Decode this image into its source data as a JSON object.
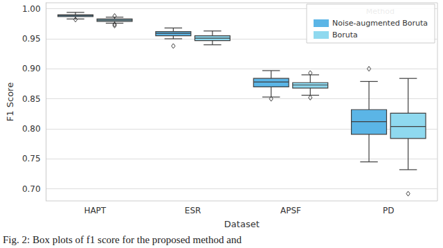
{
  "chart_data": {
    "type": "boxplot",
    "x_label": "Dataset",
    "y_label": "F1 Score",
    "caption": "Fig. 2: Box plots of f1 score for the proposed method and",
    "categories": [
      "HAPT",
      "ESR",
      "APSF",
      "PD"
    ],
    "series": [
      {
        "name": "Noise-augmented Boruta",
        "color": "#5bb5e6",
        "values": [
          {
            "min": 0.983,
            "q1": 0.987,
            "median": 0.989,
            "q3": 0.99,
            "max": 0.994,
            "outliers": [
              0.982
            ]
          },
          {
            "min": 0.95,
            "q1": 0.955,
            "median": 0.959,
            "q3": 0.962,
            "max": 0.968,
            "outliers": [
              0.938
            ]
          },
          {
            "min": 0.853,
            "q1": 0.87,
            "median": 0.878,
            "q3": 0.884,
            "max": 0.897,
            "outliers": [
              0.85
            ]
          },
          {
            "min": 0.745,
            "q1": 0.791,
            "median": 0.812,
            "q3": 0.832,
            "max": 0.879,
            "outliers": [
              0.9
            ]
          }
        ]
      },
      {
        "name": "Boruta",
        "color": "#8fd9ef",
        "values": [
          {
            "min": 0.976,
            "q1": 0.979,
            "median": 0.981,
            "q3": 0.983,
            "max": 0.986,
            "outliers": [
              0.988,
              0.974,
              0.972
            ]
          },
          {
            "min": 0.94,
            "q1": 0.947,
            "median": 0.951,
            "q3": 0.955,
            "max": 0.963,
            "outliers": []
          },
          {
            "min": 0.856,
            "q1": 0.868,
            "median": 0.873,
            "q3": 0.877,
            "max": 0.89,
            "outliers": [
              0.893,
              0.852
            ]
          },
          {
            "min": 0.732,
            "q1": 0.784,
            "median": 0.804,
            "q3": 0.826,
            "max": 0.884,
            "outliers": [
              0.692
            ]
          }
        ]
      }
    ],
    "ylim": [
      0.68,
      1.01
    ],
    "yticks": [
      {
        "value": 0.7,
        "label": "0.70"
      },
      {
        "value": 0.75,
        "label": "0.75"
      },
      {
        "value": 0.8,
        "label": "0.80"
      },
      {
        "value": 0.85,
        "label": "0.85"
      },
      {
        "value": 0.9,
        "label": "0.90"
      },
      {
        "value": 0.95,
        "label": "0.95"
      },
      {
        "value": 1.0,
        "label": "1.00"
      }
    ],
    "grid": true,
    "legend": "upper right",
    "legend_title": "Method"
  }
}
